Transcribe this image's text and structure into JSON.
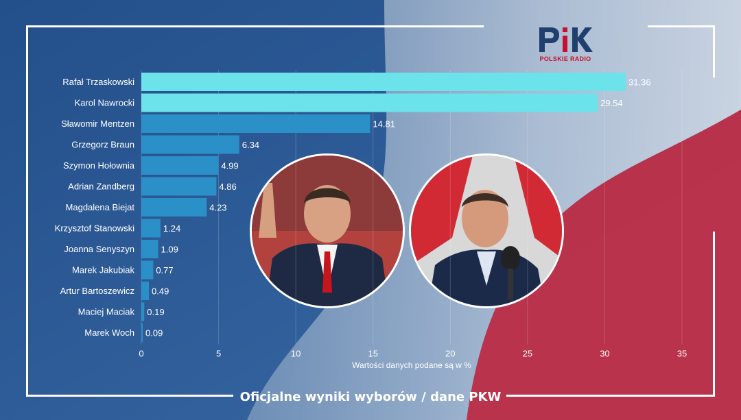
{
  "logo": {
    "brand": "PiK",
    "subtitle": "POLSKIE RADIO"
  },
  "footer": {
    "title": "Oficjalne wyniki wyborów / dane PKW"
  },
  "colors": {
    "leader": "#6ce2ea",
    "bar": "#2b8fc8",
    "background": "#2d5c96",
    "flag_red": "#c42f45"
  },
  "photos": [
    {
      "name": "candidate-photo-trzaskowski"
    },
    {
      "name": "candidate-photo-nawrocki"
    }
  ],
  "chart_data": {
    "type": "bar",
    "orientation": "horizontal",
    "categories": [
      "Rafał Trzaskowski",
      "Karol Nawrocki",
      "Sławomir Mentzen",
      "Grzegorz Braun",
      "Szymon Hołownia",
      "Adrian Zandberg",
      "Magdalena Biejat",
      "Krzysztof Stanowski",
      "Joanna Senyszyn",
      "Marek Jakubiak",
      "Artur Bartoszewicz",
      "Maciej Maciak",
      "Marek Woch"
    ],
    "values": [
      31.36,
      29.54,
      14.81,
      6.34,
      4.99,
      4.86,
      4.23,
      1.24,
      1.09,
      0.77,
      0.49,
      0.19,
      0.09
    ],
    "value_labels": [
      "31.36",
      "29.54",
      "14.81",
      "6.34",
      "4.99",
      "4.86",
      "4.23",
      "1.24",
      "1.09",
      "0.77",
      "0.49",
      "0.19",
      "0.09"
    ],
    "highlighted": [
      true,
      true,
      false,
      false,
      false,
      false,
      false,
      false,
      false,
      false,
      false,
      false,
      false
    ],
    "xlim": [
      0,
      35
    ],
    "xticks": [
      0,
      5,
      10,
      15,
      20,
      25,
      30,
      35
    ],
    "xtick_labels": [
      "0",
      "5",
      "10",
      "15",
      "20",
      "25",
      "30",
      "35"
    ],
    "xlabel": "Wartości danych podane są w %",
    "grid": true
  }
}
